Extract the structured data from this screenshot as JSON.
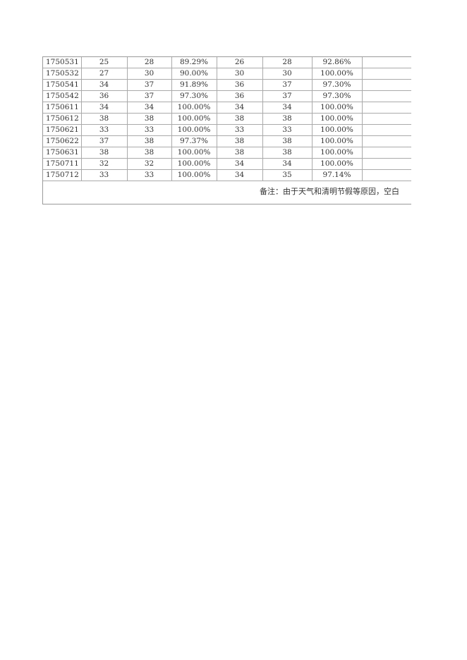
{
  "table": {
    "rows": [
      [
        "1750531",
        "25",
        "28",
        "89.29%",
        "26",
        "28",
        "92.86%",
        ""
      ],
      [
        "1750532",
        "27",
        "30",
        "90.00%",
        "30",
        "30",
        "100.00%",
        ""
      ],
      [
        "1750541",
        "34",
        "37",
        "91.89%",
        "36",
        "37",
        "97.30%",
        ""
      ],
      [
        "1750542",
        "36",
        "37",
        "97.30%",
        "36",
        "37",
        "97.30%",
        ""
      ],
      [
        "1750611",
        "34",
        "34",
        "100.00%",
        "34",
        "34",
        "100.00%",
        ""
      ],
      [
        "1750612",
        "38",
        "38",
        "100.00%",
        "38",
        "38",
        "100.00%",
        ""
      ],
      [
        "1750621",
        "33",
        "33",
        "100.00%",
        "33",
        "33",
        "100.00%",
        ""
      ],
      [
        "1750622",
        "37",
        "38",
        "97.37%",
        "38",
        "38",
        "100.00%",
        ""
      ],
      [
        "1750631",
        "38",
        "38",
        "100.00%",
        "38",
        "38",
        "100.00%",
        ""
      ],
      [
        "1750711",
        "32",
        "32",
        "100.00%",
        "34",
        "34",
        "100.00%",
        ""
      ],
      [
        "1750712",
        "33",
        "33",
        "100.00%",
        "34",
        "35",
        "97.14%",
        ""
      ]
    ]
  },
  "note": "备注：由于天气和清明节假等原因，空白"
}
